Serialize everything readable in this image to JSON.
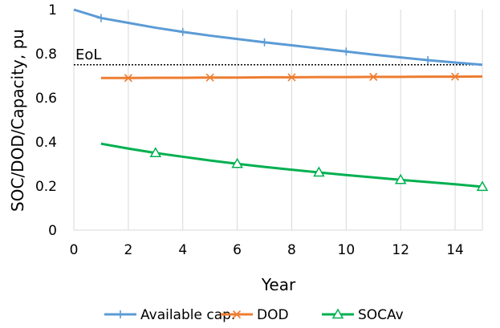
{
  "chart_data": {
    "type": "line",
    "title": "",
    "xlabel": "Year",
    "ylabel": "SOC/DOD/Capacity, pu",
    "xlim": [
      0,
      15
    ],
    "ylim": [
      0,
      1
    ],
    "x_ticks": [
      0,
      2,
      4,
      6,
      8,
      10,
      12,
      14
    ],
    "y_ticks": [
      0,
      0.2,
      0.4,
      0.6,
      0.8,
      1
    ],
    "x_tick_labels": [
      "0",
      "2",
      "4",
      "6",
      "8",
      "10",
      "12",
      "14"
    ],
    "y_tick_labels": [
      "0",
      "0.2",
      "0.4",
      "0.6",
      "0.8",
      "1"
    ],
    "grid": "vertical",
    "legend_position": "bottom",
    "annotation": {
      "text": "EoL",
      "y": 0.75
    },
    "series": [
      {
        "name": "Available cap.",
        "color": "#5b9bd5",
        "marker": "plus",
        "x": [
          0,
          1,
          2,
          3,
          4,
          5,
          6,
          7,
          8,
          9,
          10,
          11,
          12,
          13,
          14,
          15
        ],
        "values": [
          1.0,
          0.962,
          0.94,
          0.918,
          0.899,
          0.882,
          0.867,
          0.852,
          0.838,
          0.824,
          0.81,
          0.796,
          0.783,
          0.771,
          0.76,
          0.75
        ]
      },
      {
        "name": "DOD",
        "color": "#ed7d31",
        "marker": "asterisk",
        "x": [
          1,
          2,
          3,
          4,
          5,
          6,
          7,
          8,
          9,
          10,
          11,
          12,
          13,
          14,
          15
        ],
        "values": [
          0.69,
          0.69,
          0.691,
          0.691,
          0.692,
          0.692,
          0.693,
          0.693,
          0.694,
          0.694,
          0.695,
          0.695,
          0.696,
          0.696,
          0.697
        ]
      },
      {
        "name": "SOCAv",
        "color": "#00b050",
        "marker": "triangle",
        "x": [
          1,
          2,
          3,
          4,
          5,
          6,
          7,
          8,
          9,
          10,
          11,
          12,
          13,
          14,
          15
        ],
        "values": [
          0.392,
          0.37,
          0.35,
          0.333,
          0.316,
          0.301,
          0.287,
          0.274,
          0.262,
          0.25,
          0.239,
          0.228,
          0.218,
          0.208,
          0.197
        ]
      }
    ]
  }
}
